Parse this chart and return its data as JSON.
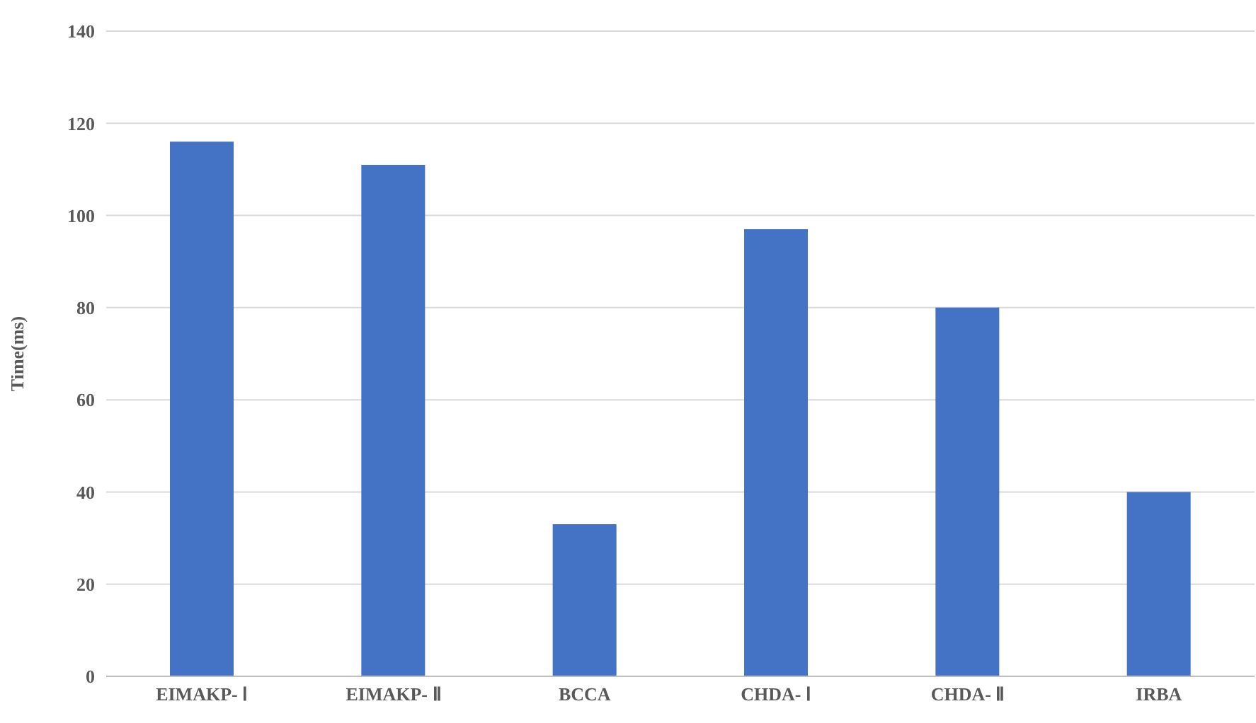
{
  "chart_data": {
    "type": "bar",
    "ylabel": "Time(ms)",
    "categories": [
      "EIMAKP- Ⅰ",
      "EIMAKP- Ⅱ",
      "BCCA",
      "CHDA- Ⅰ",
      "CHDA- Ⅱ",
      "IRBA"
    ],
    "values": [
      116,
      111,
      33,
      97,
      80,
      40
    ],
    "color": "#4472c4",
    "ylim": [
      0,
      140
    ],
    "yticks": [
      0,
      20,
      40,
      60,
      80,
      100,
      120,
      140
    ],
    "grid": "y"
  }
}
